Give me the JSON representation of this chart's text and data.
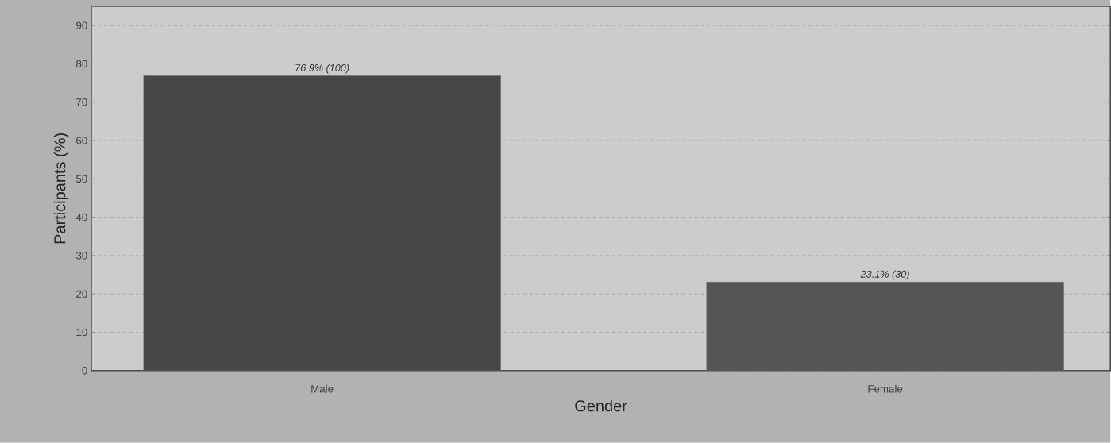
{
  "chart_data": {
    "type": "bar",
    "xlabel": "Gender",
    "ylabel": "Participants (%)",
    "categories": [
      "Male",
      "Female"
    ],
    "values": [
      76.9,
      23.1
    ],
    "colors": [
      "#474747",
      "#555555"
    ],
    "value_labels": [
      "76.9% (100)",
      "23.1% (30)"
    ],
    "ylim": [
      0,
      95
    ],
    "yticks": [
      0,
      10,
      20,
      30,
      40,
      50,
      60,
      70,
      80,
      90
    ],
    "grid": "y"
  }
}
